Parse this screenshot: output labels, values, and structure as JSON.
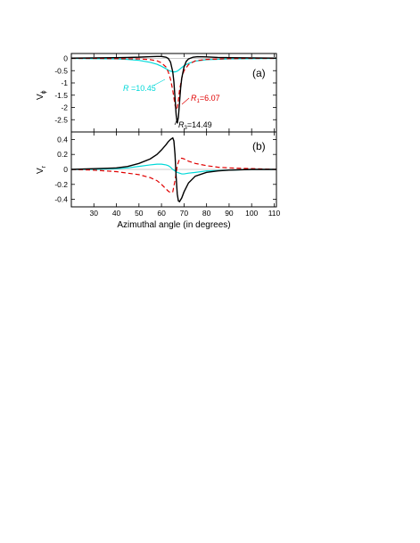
{
  "chart_data": [
    {
      "type": "line",
      "panel_label": "(a)",
      "ylabel_main": "V",
      "ylabel_sub": "ϕ",
      "xlim": [
        20,
        111
      ],
      "ylim": [
        -3.0,
        0.2
      ],
      "yticks": [
        "0",
        "-0.5",
        "-1",
        "-1.5",
        "-2",
        "-2.5"
      ],
      "ytick_values": [
        0,
        -0.5,
        -1,
        -1.5,
        -2,
        -2.5
      ],
      "grid": false,
      "annotations": [
        {
          "id": "cyan",
          "prefix": "R",
          "sub": "",
          "suffix": " =10.45",
          "color": "#00d8d8"
        },
        {
          "id": "red",
          "prefix": "R",
          "sub": "1",
          "suffix": "=6.07",
          "color": "#e00000"
        },
        {
          "id": "black",
          "prefix": "R",
          "sub": "3",
          "suffix": "=14.49",
          "color": "#000000"
        }
      ],
      "series": [
        {
          "key": "black",
          "color": "#000000",
          "dash": "",
          "x": [
            20,
            30,
            40,
            45,
            50,
            55,
            58,
            60,
            62,
            63,
            64,
            65,
            65.5,
            66,
            66.5,
            67,
            67.5,
            68,
            68.5,
            69,
            70,
            71,
            72,
            74,
            76,
            80,
            85,
            90,
            100,
            111
          ],
          "y": [
            0.01,
            0.02,
            0.03,
            0.04,
            0.05,
            0.07,
            0.08,
            0.08,
            0.05,
            0.0,
            -0.15,
            -0.55,
            -0.95,
            -1.6,
            -2.3,
            -2.65,
            -2.4,
            -1.8,
            -1.2,
            -0.8,
            -0.35,
            -0.12,
            -0.02,
            0.05,
            0.07,
            0.06,
            0.04,
            0.03,
            0.02,
            0.01
          ]
        },
        {
          "key": "red",
          "color": "#e00000",
          "dash": "5,3",
          "x": [
            20,
            30,
            40,
            50,
            55,
            58,
            60,
            62,
            63,
            64,
            65,
            66,
            66.5,
            67,
            67.5,
            68,
            69,
            70,
            72,
            75,
            80,
            90,
            100,
            111
          ],
          "y": [
            0.0,
            0.0,
            -0.01,
            -0.02,
            -0.05,
            -0.1,
            -0.18,
            -0.35,
            -0.55,
            -0.85,
            -1.3,
            -1.9,
            -2.1,
            -2.0,
            -1.7,
            -1.3,
            -0.8,
            -0.5,
            -0.25,
            -0.1,
            -0.04,
            -0.01,
            0.0,
            0.0
          ],
          "ref": "red"
        },
        {
          "key": "cyan",
          "color": "#00d8d8",
          "dash": "",
          "x": [
            20,
            30,
            40,
            45,
            50,
            55,
            58,
            60,
            62,
            63,
            64,
            65,
            66,
            67,
            68,
            69,
            70,
            72,
            75,
            80,
            90,
            100,
            111
          ],
          "y": [
            0.0,
            -0.01,
            -0.02,
            -0.04,
            -0.08,
            -0.16,
            -0.24,
            -0.32,
            -0.42,
            -0.48,
            -0.52,
            -0.55,
            -0.55,
            -0.52,
            -0.45,
            -0.37,
            -0.3,
            -0.2,
            -0.11,
            -0.05,
            -0.02,
            -0.01,
            0.0
          ]
        },
        {
          "key": "gray",
          "color": "#999999",
          "dash": "",
          "x": [
            20,
            111
          ],
          "y": [
            0,
            0
          ]
        }
      ]
    },
    {
      "type": "line",
      "panel_label": "(b)",
      "ylabel_main": "V",
      "ylabel_sub": "r",
      "xlabel": "Azimuthal angle (in degrees)",
      "xlim": [
        20,
        111
      ],
      "ylim": [
        -0.5,
        0.5
      ],
      "xticks": [
        "30",
        "40",
        "50",
        "60",
        "70",
        "80",
        "90",
        "100",
        "110"
      ],
      "xtick_values": [
        30,
        40,
        50,
        60,
        70,
        80,
        90,
        100,
        110
      ],
      "yticks": [
        "0.4",
        "0.2",
        "0",
        "-0.2",
        "-0.4"
      ],
      "ytick_values": [
        0.4,
        0.2,
        0,
        -0.2,
        -0.4
      ],
      "grid": false,
      "series": [
        {
          "key": "black",
          "color": "#000000",
          "dash": "",
          "x": [
            20,
            30,
            40,
            45,
            50,
            55,
            58,
            60,
            62,
            63,
            64,
            65,
            65.5,
            66,
            66.5,
            67,
            67.5,
            68,
            69,
            70,
            72,
            75,
            80,
            85,
            90,
            100,
            111
          ],
          "y": [
            0.0,
            0.01,
            0.02,
            0.04,
            0.08,
            0.14,
            0.2,
            0.26,
            0.33,
            0.37,
            0.4,
            0.42,
            0.38,
            0.2,
            -0.1,
            -0.33,
            -0.42,
            -0.43,
            -0.38,
            -0.3,
            -0.18,
            -0.09,
            -0.04,
            -0.02,
            -0.01,
            0.0,
            0.0
          ]
        },
        {
          "key": "red",
          "color": "#e00000",
          "dash": "5,3",
          "x": [
            20,
            30,
            40,
            45,
            50,
            55,
            58,
            60,
            62,
            63,
            64,
            65,
            66,
            67,
            68,
            69,
            70,
            72,
            75,
            80,
            85,
            90,
            100,
            111
          ],
          "y": [
            0.0,
            -0.01,
            -0.03,
            -0.05,
            -0.07,
            -0.11,
            -0.15,
            -0.2,
            -0.26,
            -0.29,
            -0.31,
            -0.3,
            -0.15,
            0.05,
            0.14,
            0.15,
            0.14,
            0.11,
            0.08,
            0.05,
            0.03,
            0.02,
            0.01,
            0.0
          ]
        },
        {
          "key": "cyan",
          "color": "#00d8d8",
          "dash": "",
          "x": [
            20,
            30,
            40,
            45,
            50,
            55,
            58,
            60,
            62,
            63,
            64,
            65,
            66,
            67,
            68,
            69,
            70,
            72,
            75,
            80,
            90,
            100,
            111
          ],
          "y": [
            0.0,
            0.0,
            0.01,
            0.02,
            0.04,
            0.06,
            0.07,
            0.07,
            0.06,
            0.05,
            0.03,
            0.0,
            -0.02,
            -0.04,
            -0.05,
            -0.06,
            -0.06,
            -0.05,
            -0.04,
            -0.02,
            -0.01,
            0.0,
            0.0
          ]
        },
        {
          "key": "gray",
          "color": "#999999",
          "dash": "",
          "x": [
            20,
            111
          ],
          "y": [
            0,
            0
          ]
        }
      ]
    }
  ]
}
